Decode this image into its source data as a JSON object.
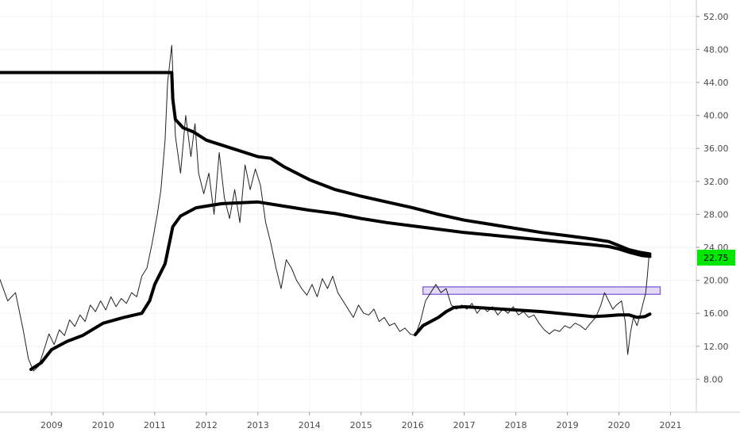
{
  "chart_data": {
    "type": "line",
    "title": "",
    "xlabel": "",
    "ylabel": "",
    "grid": true,
    "legend": "none",
    "xlim": [
      2008.0,
      2021.5
    ],
    "ylim": [
      4.0,
      54.0
    ],
    "x_ticks": [
      {
        "label": "2009",
        "x": 2009.0
      },
      {
        "label": "2010",
        "x": 2010.0
      },
      {
        "label": "2011",
        "x": 2011.0
      },
      {
        "label": "2012",
        "x": 2012.0
      },
      {
        "label": "2013",
        "x": 2013.0
      },
      {
        "label": "2014",
        "x": 2014.0
      },
      {
        "label": "2015",
        "x": 2015.0
      },
      {
        "label": "2016",
        "x": 2016.0
      },
      {
        "label": "2017",
        "x": 2017.0
      },
      {
        "label": "2018",
        "x": 2018.0
      },
      {
        "label": "2019",
        "x": 2019.0
      },
      {
        "label": "2020",
        "x": 2020.0
      },
      {
        "label": "2021",
        "x": 2021.0
      }
    ],
    "y_ticks": [
      {
        "label": "8.00",
        "y": 8
      },
      {
        "label": "12.00",
        "y": 12
      },
      {
        "label": "16.00",
        "y": 16
      },
      {
        "label": "20.00",
        "y": 20
      },
      {
        "label": "24.00",
        "y": 24
      },
      {
        "label": "28.00",
        "y": 28
      },
      {
        "label": "32.00",
        "y": 32
      },
      {
        "label": "36.00",
        "y": 36
      },
      {
        "label": "40.00",
        "y": 40
      },
      {
        "label": "44.00",
        "y": 44
      },
      {
        "label": "48.00",
        "y": 48
      },
      {
        "label": "52.00",
        "y": 52
      }
    ],
    "last_price": {
      "label": "22.75",
      "value": 22.75,
      "color": "#00e600"
    },
    "series": [
      {
        "kind": "price",
        "color": "#222222",
        "points": [
          [
            2008.0,
            20.1
          ],
          [
            2008.15,
            17.5
          ],
          [
            2008.3,
            18.5
          ],
          [
            2008.45,
            14.0
          ],
          [
            2008.55,
            10.5
          ],
          [
            2008.65,
            9.0
          ],
          [
            2008.75,
            9.6
          ],
          [
            2008.85,
            11.5
          ],
          [
            2008.95,
            13.5
          ],
          [
            2009.05,
            12.2
          ],
          [
            2009.15,
            14.0
          ],
          [
            2009.25,
            13.3
          ],
          [
            2009.35,
            15.2
          ],
          [
            2009.45,
            14.4
          ],
          [
            2009.55,
            15.8
          ],
          [
            2009.65,
            15.0
          ],
          [
            2009.75,
            17.0
          ],
          [
            2009.85,
            16.2
          ],
          [
            2009.95,
            17.5
          ],
          [
            2010.05,
            16.4
          ],
          [
            2010.15,
            18.0
          ],
          [
            2010.25,
            16.8
          ],
          [
            2010.35,
            17.8
          ],
          [
            2010.45,
            17.2
          ],
          [
            2010.55,
            18.5
          ],
          [
            2010.65,
            18.0
          ],
          [
            2010.75,
            20.5
          ],
          [
            2010.85,
            21.5
          ],
          [
            2010.95,
            24.5
          ],
          [
            2011.05,
            28.0
          ],
          [
            2011.12,
            31.0
          ],
          [
            2011.2,
            37.0
          ],
          [
            2011.25,
            44.0
          ],
          [
            2011.33,
            48.5
          ],
          [
            2011.4,
            37.5
          ],
          [
            2011.5,
            33.0
          ],
          [
            2011.6,
            40.0
          ],
          [
            2011.7,
            35.0
          ],
          [
            2011.78,
            39.0
          ],
          [
            2011.85,
            33.0
          ],
          [
            2011.95,
            30.5
          ],
          [
            2012.05,
            33.0
          ],
          [
            2012.15,
            28.0
          ],
          [
            2012.25,
            35.5
          ],
          [
            2012.35,
            30.0
          ],
          [
            2012.45,
            27.5
          ],
          [
            2012.55,
            31.0
          ],
          [
            2012.65,
            27.0
          ],
          [
            2012.75,
            34.0
          ],
          [
            2012.85,
            31.0
          ],
          [
            2012.95,
            33.5
          ],
          [
            2013.05,
            31.5
          ],
          [
            2013.15,
            27.0
          ],
          [
            2013.25,
            24.5
          ],
          [
            2013.35,
            21.5
          ],
          [
            2013.45,
            19.0
          ],
          [
            2013.55,
            22.5
          ],
          [
            2013.65,
            21.5
          ],
          [
            2013.75,
            20.0
          ],
          [
            2013.85,
            19.0
          ],
          [
            2013.95,
            18.2
          ],
          [
            2014.05,
            19.5
          ],
          [
            2014.15,
            18.0
          ],
          [
            2014.25,
            20.2
          ],
          [
            2014.35,
            19.0
          ],
          [
            2014.45,
            20.5
          ],
          [
            2014.55,
            18.5
          ],
          [
            2014.65,
            17.5
          ],
          [
            2014.75,
            16.5
          ],
          [
            2014.85,
            15.5
          ],
          [
            2014.95,
            17.0
          ],
          [
            2015.05,
            16.0
          ],
          [
            2015.15,
            15.8
          ],
          [
            2015.25,
            16.5
          ],
          [
            2015.35,
            15.0
          ],
          [
            2015.45,
            15.5
          ],
          [
            2015.55,
            14.5
          ],
          [
            2015.65,
            14.8
          ],
          [
            2015.75,
            13.8
          ],
          [
            2015.85,
            14.2
          ],
          [
            2015.95,
            13.5
          ],
          [
            2016.05,
            13.3
          ],
          [
            2016.15,
            15.0
          ],
          [
            2016.25,
            17.5
          ],
          [
            2016.35,
            18.5
          ],
          [
            2016.45,
            19.5
          ],
          [
            2016.55,
            18.5
          ],
          [
            2016.65,
            19.0
          ],
          [
            2016.75,
            17.0
          ],
          [
            2016.85,
            16.5
          ],
          [
            2016.95,
            17.0
          ],
          [
            2017.05,
            16.5
          ],
          [
            2017.15,
            17.2
          ],
          [
            2017.25,
            16.0
          ],
          [
            2017.35,
            16.8
          ],
          [
            2017.45,
            16.2
          ],
          [
            2017.55,
            16.8
          ],
          [
            2017.65,
            15.8
          ],
          [
            2017.75,
            16.5
          ],
          [
            2017.85,
            16.0
          ],
          [
            2017.95,
            16.8
          ],
          [
            2018.05,
            15.8
          ],
          [
            2018.15,
            16.2
          ],
          [
            2018.25,
            15.5
          ],
          [
            2018.35,
            15.8
          ],
          [
            2018.45,
            14.8
          ],
          [
            2018.55,
            14.0
          ],
          [
            2018.65,
            13.5
          ],
          [
            2018.75,
            14.0
          ],
          [
            2018.85,
            13.8
          ],
          [
            2018.95,
            14.5
          ],
          [
            2019.05,
            14.2
          ],
          [
            2019.15,
            14.8
          ],
          [
            2019.25,
            14.5
          ],
          [
            2019.35,
            14.0
          ],
          [
            2019.45,
            14.8
          ],
          [
            2019.55,
            15.5
          ],
          [
            2019.65,
            17.0
          ],
          [
            2019.72,
            18.5
          ],
          [
            2019.8,
            17.5
          ],
          [
            2019.88,
            16.5
          ],
          [
            2019.95,
            17.0
          ],
          [
            2020.05,
            17.5
          ],
          [
            2020.12,
            15.0
          ],
          [
            2020.17,
            11.0
          ],
          [
            2020.22,
            13.5
          ],
          [
            2020.28,
            15.5
          ],
          [
            2020.35,
            14.5
          ],
          [
            2020.42,
            16.0
          ],
          [
            2020.48,
            17.5
          ],
          [
            2020.52,
            18.5
          ],
          [
            2020.55,
            20.5
          ],
          [
            2020.58,
            22.75
          ]
        ]
      },
      {
        "kind": "overlay",
        "color": "#000000",
        "points": [
          [
            2008.0,
            45.2
          ],
          [
            2011.33,
            45.2
          ],
          [
            2011.35,
            42.0
          ],
          [
            2011.4,
            39.5
          ],
          [
            2011.55,
            38.5
          ],
          [
            2011.75,
            38.0
          ],
          [
            2012.0,
            37.0
          ],
          [
            2012.5,
            36.0
          ],
          [
            2013.0,
            35.0
          ],
          [
            2013.25,
            34.8
          ],
          [
            2013.5,
            33.8
          ],
          [
            2014.0,
            32.2
          ],
          [
            2014.5,
            31.0
          ],
          [
            2015.0,
            30.2
          ],
          [
            2015.5,
            29.5
          ],
          [
            2016.0,
            28.8
          ],
          [
            2016.5,
            28.0
          ],
          [
            2017.0,
            27.3
          ],
          [
            2017.5,
            26.8
          ],
          [
            2018.0,
            26.3
          ],
          [
            2018.5,
            25.8
          ],
          [
            2019.0,
            25.4
          ],
          [
            2019.5,
            25.0
          ],
          [
            2019.8,
            24.7
          ],
          [
            2020.0,
            24.2
          ],
          [
            2020.2,
            23.7
          ],
          [
            2020.4,
            23.4
          ],
          [
            2020.6,
            23.2
          ]
        ]
      },
      {
        "kind": "overlay",
        "color": "#000000",
        "points": [
          [
            2008.6,
            9.2
          ],
          [
            2008.8,
            10.0
          ],
          [
            2009.0,
            11.6
          ],
          [
            2009.3,
            12.6
          ],
          [
            2009.6,
            13.3
          ],
          [
            2010.0,
            14.8
          ],
          [
            2010.4,
            15.5
          ],
          [
            2010.75,
            16.0
          ],
          [
            2010.9,
            17.5
          ],
          [
            2011.0,
            19.5
          ],
          [
            2011.2,
            22.0
          ],
          [
            2011.35,
            26.5
          ],
          [
            2011.5,
            27.8
          ],
          [
            2011.8,
            28.8
          ],
          [
            2012.3,
            29.3
          ],
          [
            2013.0,
            29.5
          ],
          [
            2013.5,
            29.0
          ],
          [
            2014.0,
            28.5
          ],
          [
            2014.5,
            28.1
          ],
          [
            2015.0,
            27.5
          ],
          [
            2015.5,
            27.0
          ],
          [
            2016.0,
            26.6
          ],
          [
            2016.5,
            26.2
          ],
          [
            2017.0,
            25.8
          ],
          [
            2017.5,
            25.5
          ],
          [
            2018.0,
            25.2
          ],
          [
            2018.5,
            24.9
          ],
          [
            2019.0,
            24.6
          ],
          [
            2019.5,
            24.3
          ],
          [
            2019.8,
            24.1
          ],
          [
            2020.0,
            23.8
          ],
          [
            2020.2,
            23.4
          ],
          [
            2020.45,
            23.0
          ],
          [
            2020.6,
            22.9
          ]
        ]
      },
      {
        "kind": "overlay",
        "color": "#000000",
        "points": [
          [
            2016.05,
            13.4
          ],
          [
            2016.2,
            14.5
          ],
          [
            2016.35,
            15.0
          ],
          [
            2016.5,
            15.5
          ],
          [
            2016.65,
            16.2
          ],
          [
            2016.8,
            16.7
          ],
          [
            2017.0,
            16.8
          ],
          [
            2017.5,
            16.6
          ],
          [
            2018.0,
            16.4
          ],
          [
            2018.5,
            16.2
          ],
          [
            2019.0,
            15.9
          ],
          [
            2019.5,
            15.6
          ],
          [
            2019.8,
            15.7
          ],
          [
            2020.0,
            15.8
          ],
          [
            2020.2,
            15.8
          ],
          [
            2020.35,
            15.5
          ],
          [
            2020.5,
            15.6
          ],
          [
            2020.6,
            15.9
          ]
        ]
      }
    ],
    "zones": [
      {
        "x0": 2016.2,
        "x1": 2020.8,
        "y0": 18.3,
        "y1": 19.2,
        "fill": "#d9ccf5",
        "stroke": "#8e6fd8"
      }
    ]
  }
}
